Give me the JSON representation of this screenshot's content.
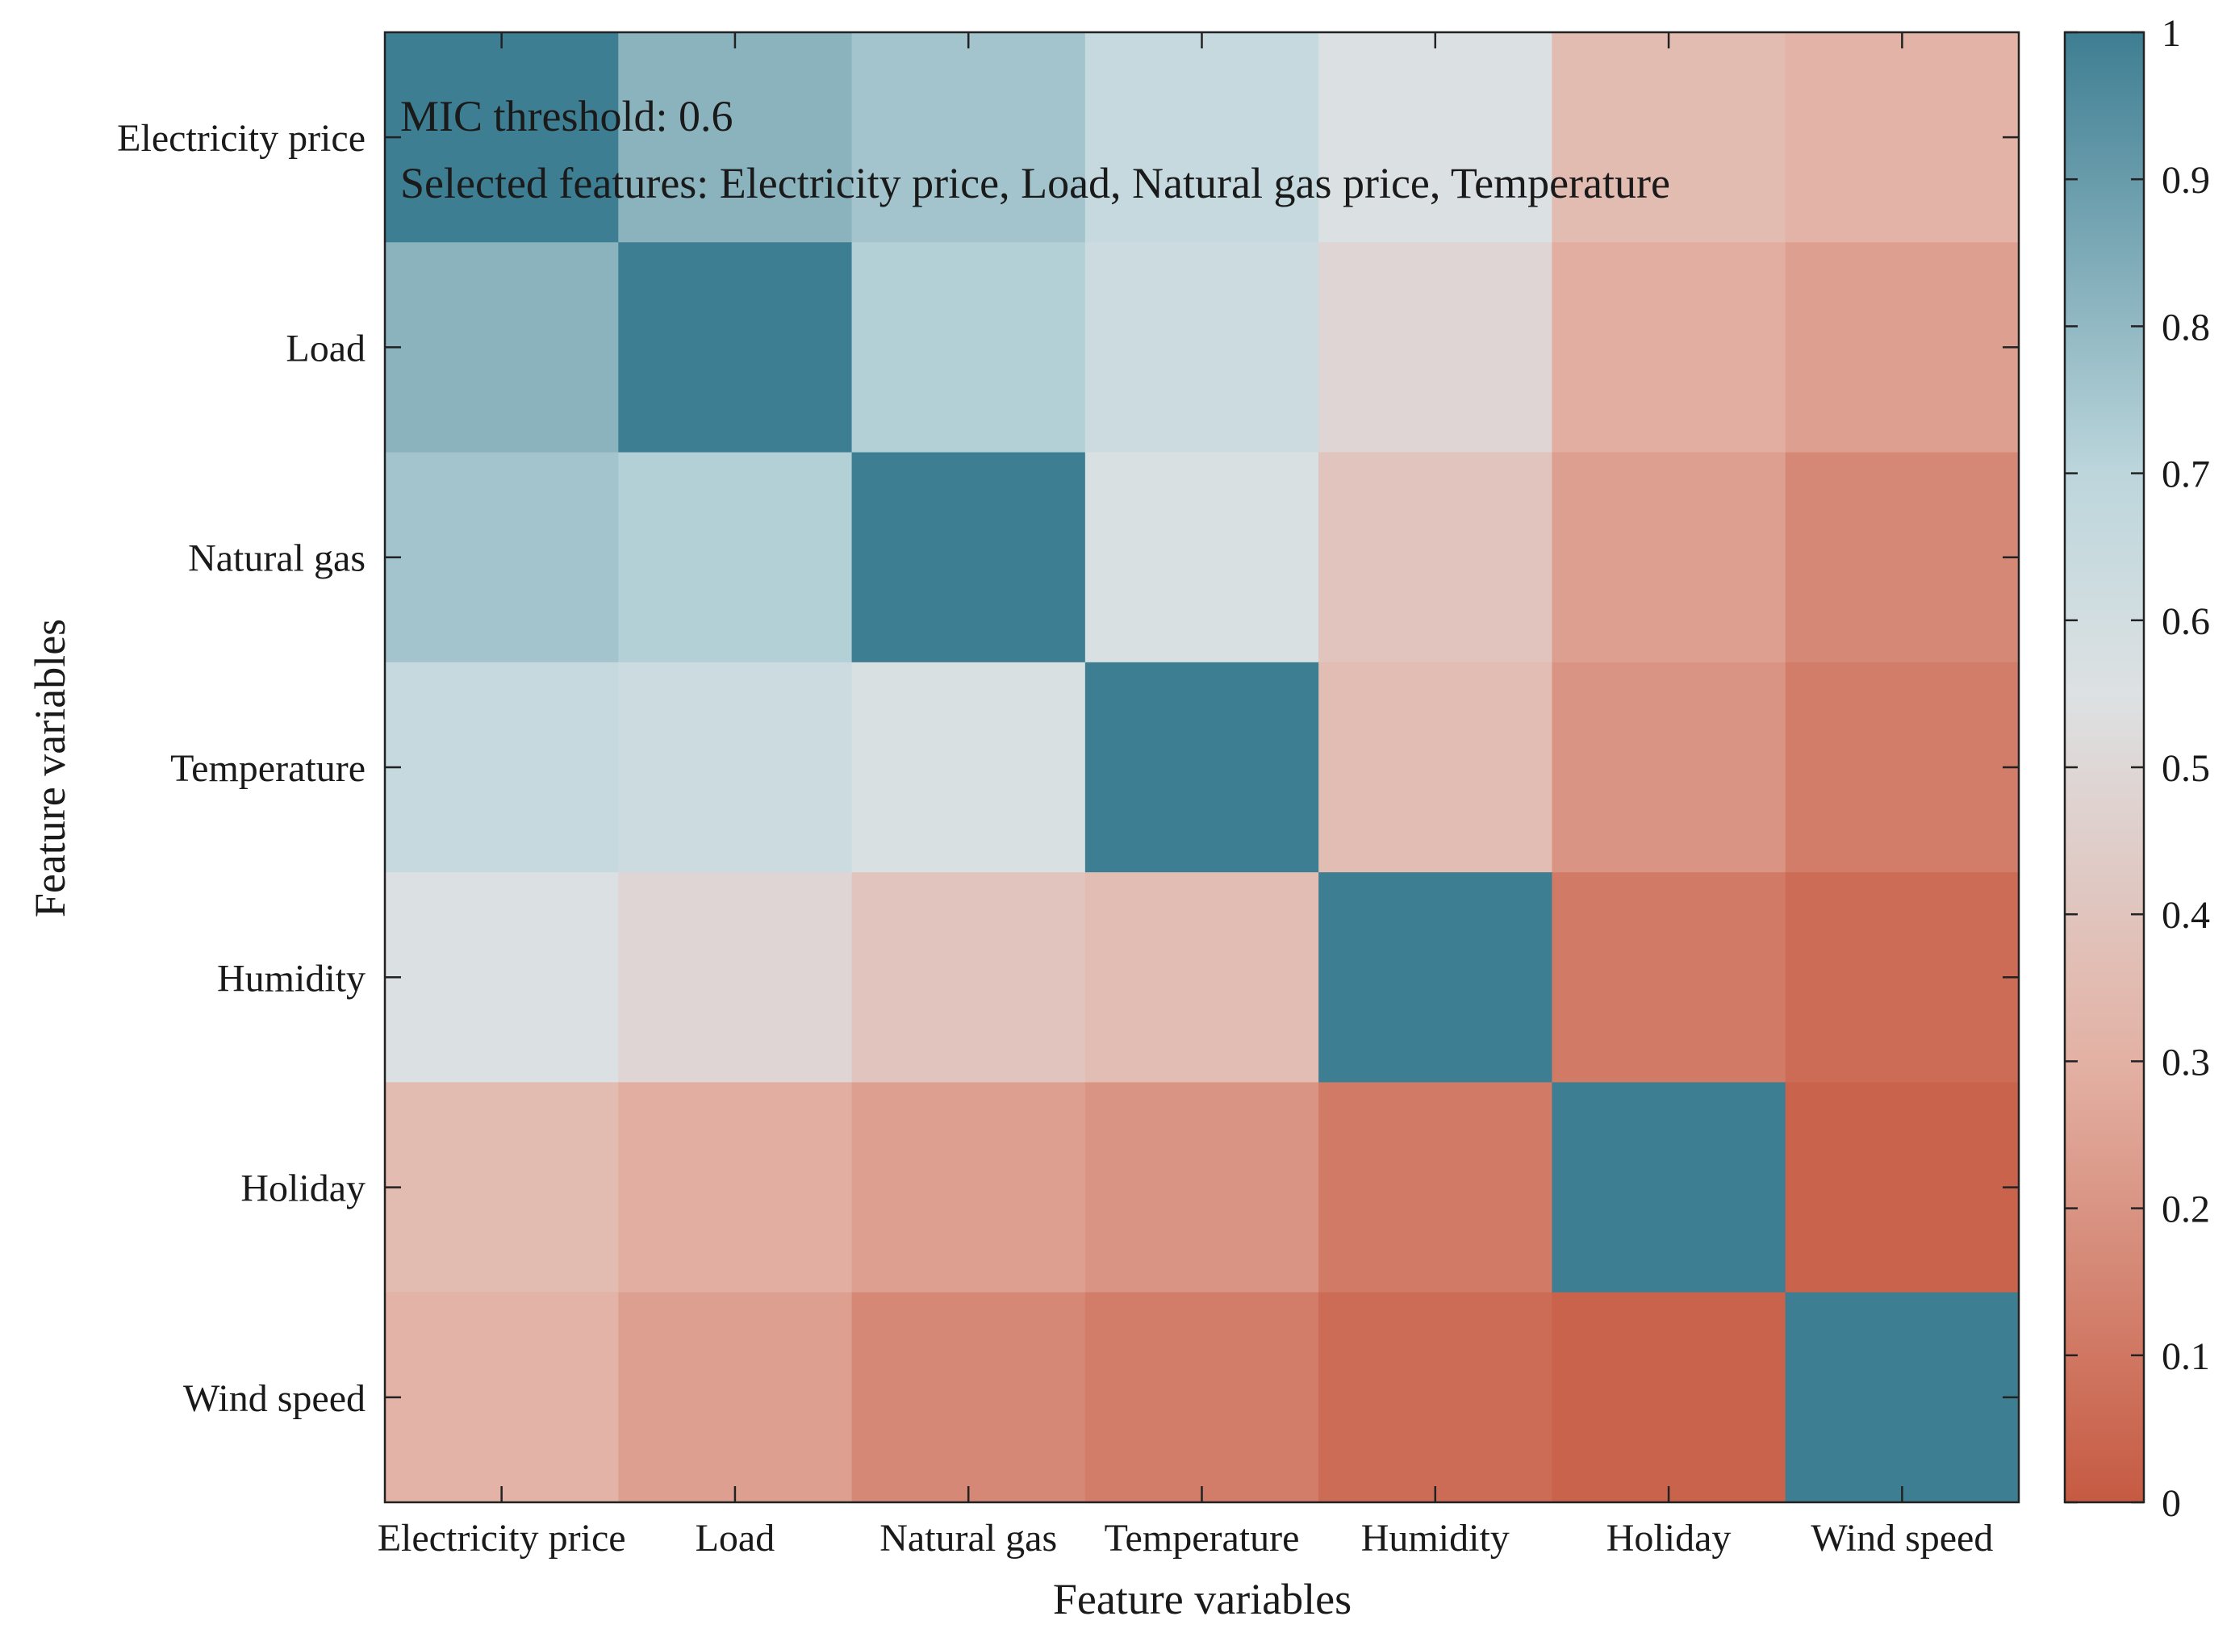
{
  "chart_data": {
    "type": "heatmap",
    "title": "",
    "xlabel": "Feature variables",
    "ylabel": "Feature variables",
    "x_categories": [
      "Electricity price",
      "Load",
      "Natural gas",
      "Temperature",
      "Humidity",
      "Holiday",
      "Wind speed"
    ],
    "y_categories": [
      "Electricity price",
      "Load",
      "Natural gas",
      "Temperature",
      "Humidity",
      "Holiday",
      "Wind speed"
    ],
    "values": [
      [
        1.0,
        0.82,
        0.76,
        0.66,
        0.56,
        0.35,
        0.31
      ],
      [
        0.82,
        1.0,
        0.72,
        0.63,
        0.49,
        0.29,
        0.24
      ],
      [
        0.76,
        0.72,
        1.0,
        0.57,
        0.4,
        0.24,
        0.16
      ],
      [
        0.66,
        0.63,
        0.57,
        1.0,
        0.36,
        0.2,
        0.12
      ],
      [
        0.56,
        0.49,
        0.4,
        0.36,
        1.0,
        0.11,
        0.06
      ],
      [
        0.35,
        0.29,
        0.24,
        0.2,
        0.11,
        1.0,
        0.03
      ],
      [
        0.31,
        0.24,
        0.16,
        0.12,
        0.06,
        0.03,
        1.0
      ]
    ],
    "colorbar": {
      "range": [
        0,
        1
      ],
      "ticks": [
        "0",
        "0.1",
        "0.2",
        "0.3",
        "0.4",
        "0.5",
        "0.6",
        "0.7",
        "0.8",
        "0.9",
        "1"
      ],
      "colormap": [
        {
          "value": 0.0,
          "color": "#c65a42"
        },
        {
          "value": 0.3,
          "color": "#e3b1a4"
        },
        {
          "value": 0.55,
          "color": "#dde1e3"
        },
        {
          "value": 0.7,
          "color": "#bcd6dc"
        },
        {
          "value": 1.0,
          "color": "#3e7e92"
        }
      ]
    },
    "annotations": [
      "MIC threshold: 0.6",
      "Selected features: Electricity price, Load, Natural gas price, Temperature"
    ]
  }
}
